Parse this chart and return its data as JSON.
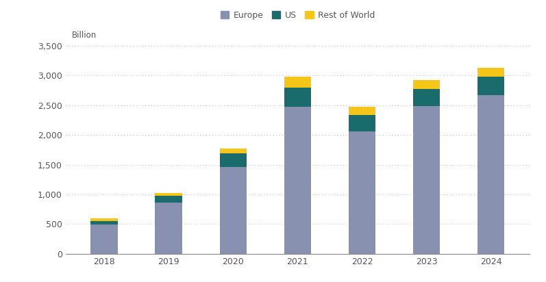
{
  "years": [
    "2018",
    "2019",
    "2020",
    "2021",
    "2022",
    "2023",
    "2024"
  ],
  "europe": [
    490,
    860,
    1460,
    2470,
    2060,
    2490,
    2670
  ],
  "us": [
    65,
    120,
    230,
    320,
    270,
    280,
    310
  ],
  "rest_of_world": [
    40,
    45,
    80,
    185,
    140,
    155,
    155
  ],
  "europe_color": "#8892b0",
  "us_color": "#1a6b6b",
  "row_color": "#f5c518",
  "background_color": "#ffffff",
  "ylabel": "Billion",
  "yticks": [
    0,
    500,
    1000,
    1500,
    2000,
    2500,
    3000,
    3500
  ],
  "ytick_labels": [
    "0",
    "500",
    "1,000",
    "1,500",
    "2,000",
    "2,500",
    "3,000",
    "3,500"
  ],
  "legend_europe": "Europe",
  "legend_us": "US",
  "legend_row": "Rest of World",
  "grid_color": "#c8c8c8",
  "bar_width": 0.42
}
